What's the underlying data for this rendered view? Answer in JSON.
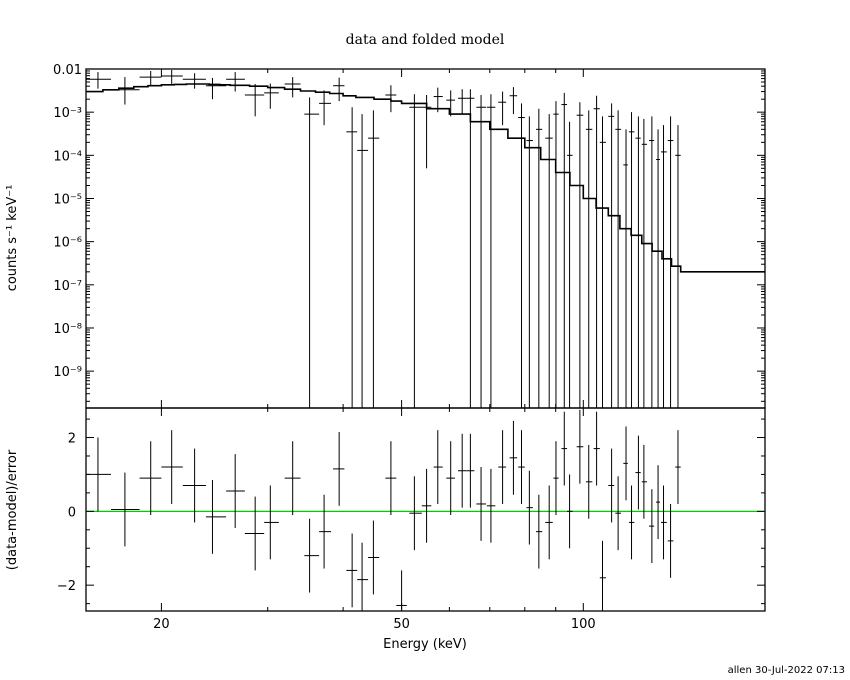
{
  "chart_data": {
    "type": "scatter",
    "title": "data and folded model",
    "xlabel": "Energy (keV)",
    "xscale": "log",
    "xlim": [
      15,
      200
    ],
    "xticks": [
      {
        "value": 20,
        "label": "20"
      },
      {
        "value": 50,
        "label": "50"
      },
      {
        "value": 100,
        "label": "100"
      }
    ],
    "footer": "allen 30-Jul-2022 07:13",
    "upper": {
      "ylabel": "counts s⁻¹ keV⁻¹",
      "yscale": "log",
      "ylim": [
        1.4e-10,
        0.01
      ],
      "yticks": [
        {
          "value": 0.01,
          "label": "0.01"
        },
        {
          "value": 0.001,
          "label": "10⁻³"
        },
        {
          "value": 0.0001,
          "label": "10⁻⁴"
        },
        {
          "value": 1e-05,
          "label": "10⁻⁵"
        },
        {
          "value": 1e-06,
          "label": "10⁻⁶"
        },
        {
          "value": 1e-07,
          "label": "10⁻⁷"
        },
        {
          "value": 1e-08,
          "label": "10⁻⁸"
        },
        {
          "value": 1e-09,
          "label": "10⁻⁹"
        }
      ],
      "data": [
        {
          "x": 15.7,
          "xlo": 15.0,
          "xhi": 16.5,
          "y": 0.0058,
          "ylo": 0.0035,
          "yhi": 0.0085
        },
        {
          "x": 17.4,
          "xlo": 16.5,
          "xhi": 18.4,
          "y": 0.0033,
          "ylo": 0.0015,
          "yhi": 0.0065
        },
        {
          "x": 19.2,
          "xlo": 18.4,
          "xhi": 20.0,
          "y": 0.0065,
          "ylo": 0.004,
          "yhi": 0.009
        },
        {
          "x": 20.8,
          "xlo": 20.0,
          "xhi": 21.7,
          "y": 0.0069,
          "ylo": 0.0045,
          "yhi": 0.0095
        },
        {
          "x": 22.7,
          "xlo": 21.7,
          "xhi": 23.7,
          "y": 0.0058,
          "ylo": 0.0035,
          "yhi": 0.008
        },
        {
          "x": 24.3,
          "xlo": 23.7,
          "xhi": 25.6,
          "y": 0.0041,
          "ylo": 0.002,
          "yhi": 0.0062
        },
        {
          "x": 26.5,
          "xlo": 25.6,
          "xhi": 27.5,
          "y": 0.0058,
          "ylo": 0.003,
          "yhi": 0.0085
        },
        {
          "x": 28.6,
          "xlo": 27.5,
          "xhi": 29.6,
          "y": 0.0025,
          "ylo": 0.0008,
          "yhi": 0.0045
        },
        {
          "x": 30.3,
          "xlo": 29.6,
          "xhi": 31.3,
          "y": 0.0028,
          "ylo": 0.0012,
          "yhi": 0.0046
        },
        {
          "x": 33.0,
          "xlo": 32.0,
          "xhi": 34.0,
          "y": 0.0045,
          "ylo": 0.0022,
          "yhi": 0.0065
        },
        {
          "x": 35.2,
          "xlo": 34.5,
          "xhi": 36.5,
          "y": 0.0009,
          "ylo": 1.4e-10,
          "yhi": 0.0022
        },
        {
          "x": 37.2,
          "xlo": 36.5,
          "xhi": 38.2,
          "y": 0.0016,
          "ylo": 0.0005,
          "yhi": 0.0032
        },
        {
          "x": 39.4,
          "xlo": 38.5,
          "xhi": 40.2,
          "y": 0.0041,
          "ylo": 0.0018,
          "yhi": 0.0063
        },
        {
          "x": 41.4,
          "xlo": 40.5,
          "xhi": 42.2,
          "y": 0.00035,
          "ylo": 1.4e-10,
          "yhi": 0.0013
        },
        {
          "x": 43.0,
          "xlo": 42.2,
          "xhi": 44.0,
          "y": 0.00013,
          "ylo": 1.4e-10,
          "yhi": 0.0009
        },
        {
          "x": 44.9,
          "xlo": 44.0,
          "xhi": 45.9,
          "y": 0.00025,
          "ylo": 1.4e-10,
          "yhi": 0.0011
        },
        {
          "x": 48.0,
          "xlo": 47.0,
          "xhi": 49.0,
          "y": 0.0025,
          "ylo": 0.001,
          "yhi": 0.0042
        },
        {
          "x": 52.5,
          "xlo": 51.5,
          "xhi": 54.0,
          "y": 0.0013,
          "ylo": 1.4e-10,
          "yhi": 0.0026
        },
        {
          "x": 55.0,
          "xlo": 54.0,
          "xhi": 56.0,
          "y": 0.0013,
          "ylo": 5e-05,
          "yhi": 0.0025
        },
        {
          "x": 57.4,
          "xlo": 56.5,
          "xhi": 58.5,
          "y": 0.0023,
          "ylo": 0.001,
          "yhi": 0.0037
        },
        {
          "x": 60.3,
          "xlo": 59.3,
          "xhi": 61.3,
          "y": 0.0019,
          "ylo": 0.0008,
          "yhi": 0.0032
        },
        {
          "x": 63.0,
          "xlo": 62.0,
          "xhi": 64.0,
          "y": 0.0021,
          "ylo": 0.0009,
          "yhi": 0.0034
        },
        {
          "x": 65.0,
          "xlo": 64.0,
          "xhi": 66.0,
          "y": 0.0021,
          "ylo": 1.4e-10,
          "yhi": 0.0034
        },
        {
          "x": 67.7,
          "xlo": 66.5,
          "xhi": 69.0,
          "y": 0.0013,
          "ylo": 1.4e-10,
          "yhi": 0.0025
        },
        {
          "x": 70.3,
          "xlo": 69.2,
          "xhi": 71.5,
          "y": 0.0013,
          "ylo": 1.4e-10,
          "yhi": 0.0026
        },
        {
          "x": 73.5,
          "xlo": 72.3,
          "xhi": 74.5,
          "y": 0.0017,
          "ylo": 0.0005,
          "yhi": 0.003
        },
        {
          "x": 76.6,
          "xlo": 75.5,
          "xhi": 77.7,
          "y": 0.0024,
          "ylo": 0.0009,
          "yhi": 0.0038
        },
        {
          "x": 79.0,
          "xlo": 78.0,
          "xhi": 80.0,
          "y": 0.00075,
          "ylo": 1.4e-10,
          "yhi": 0.0016
        },
        {
          "x": 81.4,
          "xlo": 80.5,
          "xhi": 82.5,
          "y": 0.00022,
          "ylo": 1.4e-10,
          "yhi": 0.0008
        },
        {
          "x": 84.4,
          "xlo": 83.5,
          "xhi": 85.5,
          "y": 0.0004,
          "ylo": 1.4e-10,
          "yhi": 0.0012
        },
        {
          "x": 87.8,
          "xlo": 86.5,
          "xhi": 89.0,
          "y": 0.00025,
          "ylo": 1.4e-10,
          "yhi": 0.0009
        },
        {
          "x": 90.1,
          "xlo": 89.2,
          "xhi": 91.0,
          "y": 0.0009,
          "ylo": 1.4e-10,
          "yhi": 0.0018
        },
        {
          "x": 93.0,
          "xlo": 92.0,
          "xhi": 94.0,
          "y": 0.0015,
          "ylo": 1.4e-10,
          "yhi": 0.0028
        },
        {
          "x": 94.9,
          "xlo": 94.0,
          "xhi": 96.0,
          "y": 0.0001,
          "ylo": 1.4e-10,
          "yhi": 0.0006
        },
        {
          "x": 98.7,
          "xlo": 97.5,
          "xhi": 100.0,
          "y": 0.00085,
          "ylo": 1.4e-10,
          "yhi": 0.0017
        },
        {
          "x": 102.1,
          "xlo": 101.0,
          "xhi": 103.5,
          "y": 0.0004,
          "ylo": 1.4e-10,
          "yhi": 0.0011
        },
        {
          "x": 105.2,
          "xlo": 104.0,
          "xhi": 106.5,
          "y": 0.0012,
          "ylo": 1.4e-10,
          "yhi": 0.0024
        },
        {
          "x": 107.6,
          "xlo": 106.5,
          "xhi": 109.0,
          "y": 0.0002,
          "ylo": 1.4e-10,
          "yhi": 0.0008
        },
        {
          "x": 111.4,
          "xlo": 110.0,
          "xhi": 112.5,
          "y": 0.0008,
          "ylo": 1.4e-10,
          "yhi": 0.0016
        },
        {
          "x": 114.2,
          "xlo": 113.0,
          "xhi": 115.5,
          "y": 0.0004,
          "ylo": 1.4e-10,
          "yhi": 0.0011
        },
        {
          "x": 117.7,
          "xlo": 116.5,
          "xhi": 118.5,
          "y": 6e-05,
          "ylo": 1.4e-10,
          "yhi": 0.0004
        },
        {
          "x": 120.2,
          "xlo": 119.0,
          "xhi": 121.5,
          "y": 0.00035,
          "ylo": 1.4e-10,
          "yhi": 0.001
        },
        {
          "x": 123.4,
          "xlo": 122.0,
          "xhi": 124.5,
          "y": 0.00025,
          "ylo": 1.4e-10,
          "yhi": 0.0008
        },
        {
          "x": 126.0,
          "xlo": 125.0,
          "xhi": 127.5,
          "y": 0.00018,
          "ylo": 1.4e-10,
          "yhi": 0.0007
        },
        {
          "x": 129.9,
          "xlo": 128.5,
          "xhi": 131.0,
          "y": 0.00022,
          "ylo": 1.4e-10,
          "yhi": 0.0008
        },
        {
          "x": 133.0,
          "xlo": 132.0,
          "xhi": 134.0,
          "y": 8e-05,
          "ylo": 1.4e-10,
          "yhi": 0.0004
        },
        {
          "x": 135.8,
          "xlo": 134.5,
          "xhi": 137.5,
          "y": 0.00012,
          "ylo": 1.4e-10,
          "yhi": 0.0005
        },
        {
          "x": 139.5,
          "xlo": 138.0,
          "xhi": 141.0,
          "y": 0.00022,
          "ylo": 1.4e-10,
          "yhi": 0.0008
        },
        {
          "x": 143.5,
          "xlo": 142.0,
          "xhi": 145.0,
          "y": 0.0001,
          "ylo": 1.4e-10,
          "yhi": 0.0005
        }
      ],
      "model": [
        [
          15.0,
          0.003
        ],
        [
          16.0,
          0.0033
        ],
        [
          17.0,
          0.0036
        ],
        [
          18.0,
          0.0039
        ],
        [
          19.0,
          0.0041
        ],
        [
          20.0,
          0.0043
        ],
        [
          21.0,
          0.0044
        ],
        [
          22.0,
          0.0045
        ],
        [
          23.0,
          0.0045
        ],
        [
          24.0,
          0.0044
        ],
        [
          25.0,
          0.0043
        ],
        [
          26.0,
          0.0042
        ],
        [
          28.0,
          0.004
        ],
        [
          30.0,
          0.0037
        ],
        [
          32.0,
          0.0034
        ],
        [
          34.0,
          0.0031
        ],
        [
          36.0,
          0.0029
        ],
        [
          38.0,
          0.0027
        ],
        [
          40.0,
          0.0024
        ],
        [
          42.0,
          0.0022
        ],
        [
          45.0,
          0.002
        ],
        [
          48.0,
          0.0018
        ],
        [
          50.0,
          0.0016
        ],
        [
          55.0,
          0.0012
        ],
        [
          60.0,
          0.0009
        ],
        [
          65.0,
          0.0006
        ],
        [
          70.0,
          0.0004
        ],
        [
          75.0,
          0.00025
        ],
        [
          80.0,
          0.00015
        ],
        [
          85.0,
          8e-05
        ],
        [
          90.0,
          4e-05
        ],
        [
          95.0,
          2e-05
        ],
        [
          100.0,
          1e-05
        ],
        [
          105.0,
          6e-06
        ],
        [
          110.0,
          4e-06
        ],
        [
          115.0,
          2e-06
        ],
        [
          120.0,
          1.4e-06
        ],
        [
          125.0,
          9e-07
        ],
        [
          130.0,
          6e-07
        ],
        [
          135.0,
          4e-07
        ],
        [
          140.0,
          2.7e-07
        ],
        [
          145.0,
          2e-07
        ]
      ]
    },
    "lower": {
      "ylabel": "(data-model)/error",
      "ylim": [
        -2.7,
        2.8
      ],
      "yticks": [
        {
          "value": -2,
          "label": "−2"
        },
        {
          "value": 0,
          "label": "0"
        },
        {
          "value": 2,
          "label": "2"
        }
      ],
      "zero_line_color": "#00cc00",
      "data": [
        {
          "x": 15.7,
          "xlo": 15.0,
          "xhi": 16.5,
          "y": 1.0,
          "ylo": 0.0,
          "yhi": 2.0
        },
        {
          "x": 17.4,
          "xlo": 16.5,
          "xhi": 18.4,
          "y": 0.05,
          "ylo": -0.95,
          "yhi": 1.05
        },
        {
          "x": 19.2,
          "xlo": 18.4,
          "xhi": 20.0,
          "y": 0.9,
          "ylo": -0.1,
          "yhi": 1.9
        },
        {
          "x": 20.8,
          "xlo": 20.0,
          "xhi": 21.7,
          "y": 1.2,
          "ylo": 0.2,
          "yhi": 2.2
        },
        {
          "x": 22.7,
          "xlo": 21.7,
          "xhi": 23.7,
          "y": 0.7,
          "ylo": -0.3,
          "yhi": 1.7
        },
        {
          "x": 24.3,
          "xlo": 23.7,
          "xhi": 25.6,
          "y": -0.15,
          "ylo": -1.15,
          "yhi": 0.85
        },
        {
          "x": 26.5,
          "xlo": 25.6,
          "xhi": 27.5,
          "y": 0.55,
          "ylo": -0.45,
          "yhi": 1.55
        },
        {
          "x": 28.6,
          "xlo": 27.5,
          "xhi": 29.6,
          "y": -0.6,
          "ylo": -1.6,
          "yhi": 0.4
        },
        {
          "x": 30.3,
          "xlo": 29.6,
          "xhi": 31.3,
          "y": -0.3,
          "ylo": -1.3,
          "yhi": 0.7
        },
        {
          "x": 33.0,
          "xlo": 32.0,
          "xhi": 34.0,
          "y": 0.9,
          "ylo": -0.1,
          "yhi": 1.9
        },
        {
          "x": 35.2,
          "xlo": 34.5,
          "xhi": 36.5,
          "y": -1.2,
          "ylo": -2.2,
          "yhi": -0.2
        },
        {
          "x": 37.2,
          "xlo": 36.5,
          "xhi": 38.2,
          "y": -0.55,
          "ylo": -1.55,
          "yhi": 0.45
        },
        {
          "x": 39.4,
          "xlo": 38.5,
          "xhi": 40.2,
          "y": 1.15,
          "ylo": 0.15,
          "yhi": 2.15
        },
        {
          "x": 41.4,
          "xlo": 40.5,
          "xhi": 42.2,
          "y": -1.6,
          "ylo": -2.6,
          "yhi": -0.6
        },
        {
          "x": 43.0,
          "xlo": 42.2,
          "xhi": 44.0,
          "y": -1.85,
          "ylo": -2.7,
          "yhi": -0.85
        },
        {
          "x": 44.9,
          "xlo": 44.0,
          "xhi": 45.9,
          "y": -1.25,
          "ylo": -2.25,
          "yhi": -0.25
        },
        {
          "x": 48.0,
          "xlo": 47.0,
          "xhi": 49.0,
          "y": 0.9,
          "ylo": -0.1,
          "yhi": 1.9
        },
        {
          "x": 50.0,
          "xlo": 49.0,
          "xhi": 51.0,
          "y": -2.55,
          "ylo": -2.7,
          "yhi": -1.6
        },
        {
          "x": 52.5,
          "xlo": 51.5,
          "xhi": 54.0,
          "y": -0.05,
          "ylo": -1.05,
          "yhi": 0.95
        },
        {
          "x": 55.0,
          "xlo": 54.0,
          "xhi": 56.0,
          "y": 0.15,
          "ylo": -0.85,
          "yhi": 1.15
        },
        {
          "x": 57.4,
          "xlo": 56.5,
          "xhi": 58.5,
          "y": 1.2,
          "ylo": 0.2,
          "yhi": 2.2
        },
        {
          "x": 60.3,
          "xlo": 59.3,
          "xhi": 61.3,
          "y": 0.9,
          "ylo": -0.1,
          "yhi": 1.9
        },
        {
          "x": 63.0,
          "xlo": 62.0,
          "xhi": 64.0,
          "y": 1.1,
          "ylo": 0.1,
          "yhi": 2.1
        },
        {
          "x": 65.0,
          "xlo": 64.0,
          "xhi": 66.0,
          "y": 1.1,
          "ylo": 0.1,
          "yhi": 2.1
        },
        {
          "x": 67.7,
          "xlo": 66.5,
          "xhi": 69.0,
          "y": 0.2,
          "ylo": -0.8,
          "yhi": 1.2
        },
        {
          "x": 70.3,
          "xlo": 69.2,
          "xhi": 71.5,
          "y": 0.15,
          "ylo": -0.85,
          "yhi": 1.15
        },
        {
          "x": 73.5,
          "xlo": 72.3,
          "xhi": 74.5,
          "y": 1.2,
          "ylo": 0.2,
          "yhi": 2.2
        },
        {
          "x": 76.6,
          "xlo": 75.5,
          "xhi": 77.7,
          "y": 1.45,
          "ylo": 0.45,
          "yhi": 2.45
        },
        {
          "x": 79.0,
          "xlo": 78.0,
          "xhi": 80.0,
          "y": 1.2,
          "ylo": 0.2,
          "yhi": 2.2
        },
        {
          "x": 81.4,
          "xlo": 80.5,
          "xhi": 82.5,
          "y": 0.1,
          "ylo": -0.9,
          "yhi": 1.1
        },
        {
          "x": 84.4,
          "xlo": 83.5,
          "xhi": 85.5,
          "y": -0.55,
          "ylo": -1.55,
          "yhi": 0.45
        },
        {
          "x": 87.8,
          "xlo": 86.5,
          "xhi": 89.0,
          "y": -0.3,
          "ylo": -1.3,
          "yhi": 0.7
        },
        {
          "x": 90.1,
          "xlo": 89.2,
          "xhi": 91.0,
          "y": 0.9,
          "ylo": -0.1,
          "yhi": 1.9
        },
        {
          "x": 93.0,
          "xlo": 92.0,
          "xhi": 94.0,
          "y": 1.7,
          "ylo": 0.7,
          "yhi": 2.7
        },
        {
          "x": 94.9,
          "xlo": 94.0,
          "xhi": 96.0,
          "y": 0.0,
          "ylo": -1.0,
          "yhi": 1.0
        },
        {
          "x": 98.7,
          "xlo": 97.5,
          "xhi": 100.0,
          "y": 1.75,
          "ylo": 0.75,
          "yhi": 2.75
        },
        {
          "x": 102.1,
          "xlo": 101.0,
          "xhi": 103.5,
          "y": 0.8,
          "ylo": -0.2,
          "yhi": 1.8
        },
        {
          "x": 105.2,
          "xlo": 104.0,
          "xhi": 106.5,
          "y": 1.7,
          "ylo": 0.7,
          "yhi": 2.7
        },
        {
          "x": 107.6,
          "xlo": 106.5,
          "xhi": 109.0,
          "y": -1.8,
          "ylo": -2.7,
          "yhi": -0.8
        },
        {
          "x": 111.4,
          "xlo": 110.0,
          "xhi": 112.5,
          "y": 0.7,
          "ylo": -0.3,
          "yhi": 1.7
        },
        {
          "x": 114.2,
          "xlo": 113.0,
          "xhi": 115.5,
          "y": -0.05,
          "ylo": -1.05,
          "yhi": 0.95
        },
        {
          "x": 117.7,
          "xlo": 116.5,
          "xhi": 118.5,
          "y": 1.3,
          "ylo": 0.3,
          "yhi": 2.3
        },
        {
          "x": 120.2,
          "xlo": 119.0,
          "xhi": 121.5,
          "y": -0.3,
          "ylo": -1.3,
          "yhi": 0.7
        },
        {
          "x": 123.4,
          "xlo": 122.0,
          "xhi": 124.5,
          "y": 1.05,
          "ylo": 0.05,
          "yhi": 2.05
        },
        {
          "x": 126.0,
          "xlo": 125.0,
          "xhi": 127.5,
          "y": 0.8,
          "ylo": -0.2,
          "yhi": 1.8
        },
        {
          "x": 129.9,
          "xlo": 128.5,
          "xhi": 131.0,
          "y": -0.4,
          "ylo": -1.4,
          "yhi": 0.6
        },
        {
          "x": 133.0,
          "xlo": 132.0,
          "xhi": 134.0,
          "y": 0.25,
          "ylo": -0.75,
          "yhi": 1.25
        },
        {
          "x": 135.8,
          "xlo": 134.5,
          "xhi": 137.5,
          "y": -0.3,
          "ylo": -1.3,
          "yhi": 0.7
        },
        {
          "x": 139.5,
          "xlo": 138.0,
          "xhi": 141.0,
          "y": -0.8,
          "ylo": -1.8,
          "yhi": 0.2
        },
        {
          "x": 143.5,
          "xlo": 142.0,
          "xhi": 145.0,
          "y": 1.2,
          "ylo": 0.2,
          "yhi": 2.2
        }
      ]
    }
  }
}
